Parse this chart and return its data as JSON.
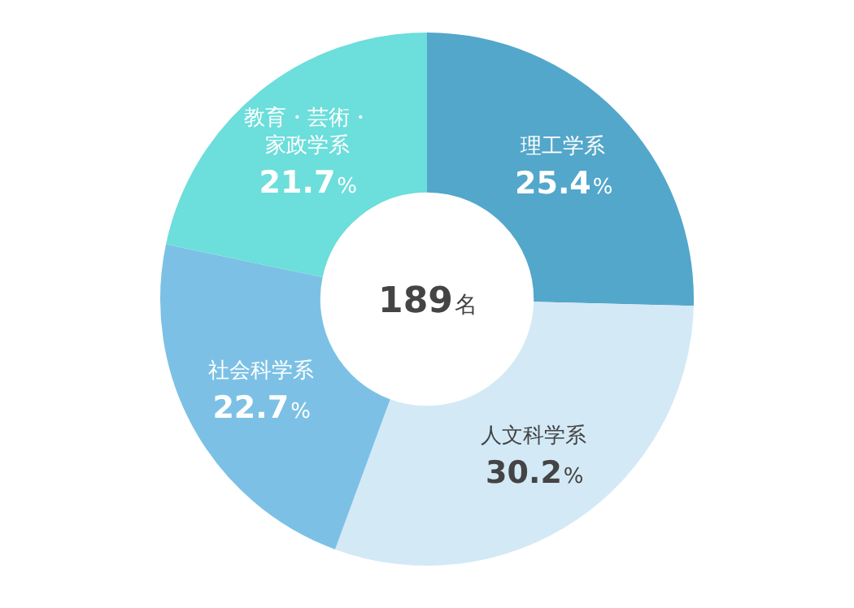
{
  "chart_data": {
    "type": "donut",
    "categories": [
      "理工学系",
      "人文科学系",
      "社会科学系",
      "教育・芸術・家政学系"
    ],
    "values": [
      25.4,
      30.2,
      22.7,
      21.7
    ],
    "colors": [
      "#53a7ca",
      "#d3e9f6",
      "#7cc1e5",
      "#6cdedb"
    ],
    "value_labels": [
      "25.4%",
      "30.2%",
      "22.7%",
      "21.7%"
    ],
    "annotations": [
      "189名"
    ],
    "legend": false
  }
}
